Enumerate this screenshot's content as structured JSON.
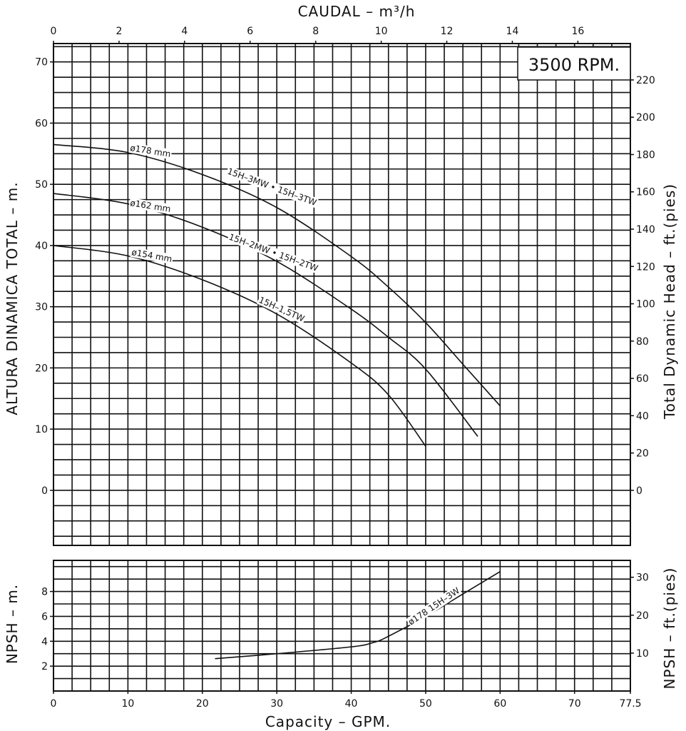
{
  "chart_data": [
    {
      "type": "line",
      "title": "3500 RPM.",
      "top_axis_label": "CAUDAL  – m³/h",
      "top_axis_ticks": [
        0,
        2,
        4,
        6,
        8,
        10,
        12,
        14,
        16
      ],
      "xlabel": "Capacity  –  GPM.",
      "xlim": [
        0,
        77.5
      ],
      "ylabel": "ALTURA DINAMICA TOTAL  –  m.",
      "ylim": [
        -9,
        73
      ],
      "yticks": [
        0,
        10,
        20,
        30,
        40,
        50,
        60,
        70
      ],
      "y2label": "Total Dynamic Head  –  ft.(pies)",
      "y2ticks": [
        0,
        20,
        40,
        60,
        80,
        100,
        120,
        140,
        160,
        180,
        200,
        220
      ],
      "series": [
        {
          "name": "ø178 mm",
          "model_label": "15H–3MW • 15H–3TW",
          "x": [
            0,
            10,
            20,
            30,
            40,
            45,
            50,
            55,
            60
          ],
          "y": [
            56.5,
            55.2,
            51.6,
            46.2,
            38.2,
            33.2,
            27.4,
            20.6,
            13.8
          ]
        },
        {
          "name": "ø162 mm",
          "model_label": "15H–2MW • 15H–2TW",
          "x": [
            0,
            10,
            20,
            30,
            40,
            45,
            50,
            57
          ],
          "y": [
            48.5,
            46.8,
            43.0,
            37.4,
            29.6,
            25.0,
            19.8,
            8.8
          ]
        },
        {
          "name": "ø154 mm",
          "model_label": "15H–1,5TW",
          "x": [
            0,
            10,
            20,
            30,
            40,
            45,
            50
          ],
          "y": [
            40.0,
            38.3,
            34.4,
            28.8,
            20.8,
            15.6,
            7.2
          ]
        }
      ]
    },
    {
      "type": "line",
      "xlabel": "Capacity  –  GPM.",
      "xlim": [
        0,
        77.5
      ],
      "xticks": [
        0,
        10,
        20,
        30,
        40,
        50,
        60,
        70,
        77.5
      ],
      "ylabel": "NPSH  –  m.",
      "ylim": [
        0,
        10.5
      ],
      "yticks": [
        2,
        4,
        6,
        8
      ],
      "y2label": "NPSH  –  ft.(pies)",
      "y2ticks": [
        10,
        20,
        30
      ],
      "series": [
        {
          "name": "ø178 15H–3W",
          "x": [
            21.7,
            30,
            40,
            43,
            45,
            50,
            55,
            60
          ],
          "y": [
            2.6,
            3.0,
            3.55,
            3.9,
            4.4,
            6.0,
            7.8,
            9.6
          ]
        }
      ]
    }
  ]
}
